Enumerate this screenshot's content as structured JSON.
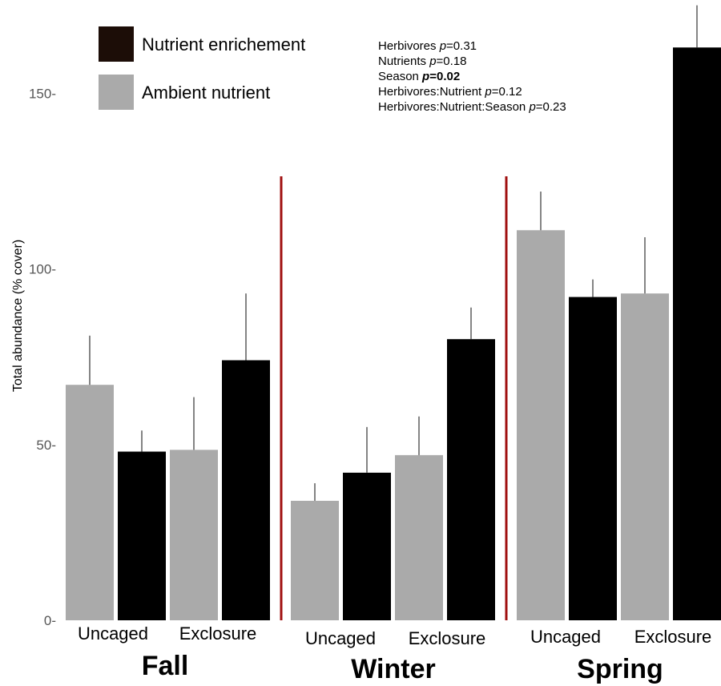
{
  "chart_data": {
    "type": "bar",
    "ylabel": "Total abundance (% cover)",
    "ylim": [
      0,
      168
    ],
    "yticks": [
      0,
      50,
      100,
      150
    ],
    "grid": false,
    "legend": {
      "placement": "top-left",
      "entries": [
        {
          "name": "Nutrient enrichement",
          "color": "#1c0d07"
        },
        {
          "name": "Ambient nutrient",
          "color": "#aaaaaa"
        }
      ]
    },
    "stats_annotation": [
      {
        "name": "Herbivores",
        "p": "=0.31",
        "bold": false
      },
      {
        "name": "Nutrients",
        "p": "=0.18",
        "bold": false
      },
      {
        "name": "Season",
        "p": "=0.02",
        "bold": true
      },
      {
        "name": "Herbivores:Nutrient",
        "p": "=0.12",
        "bold": false
      },
      {
        "name": "Herbivores:Nutrient:Season",
        "p": "=0.23",
        "bold": false
      }
    ],
    "separator_color": "#a01010",
    "groups": [
      {
        "season": "Fall",
        "treatments": [
          "Uncaged",
          "Exclosure"
        ],
        "bars": [
          {
            "treatment": "Uncaged",
            "nutrient": "Ambient nutrient",
            "value": 67,
            "error": 14
          },
          {
            "treatment": "Uncaged",
            "nutrient": "Nutrient enrichement",
            "value": 48,
            "error": 6
          },
          {
            "treatment": "Exclosure",
            "nutrient": "Ambient nutrient",
            "value": 48.5,
            "error": 15
          },
          {
            "treatment": "Exclosure",
            "nutrient": "Nutrient enrichement",
            "value": 74,
            "error": 19
          }
        ]
      },
      {
        "season": "Winter",
        "treatments": [
          "Uncaged",
          "Exclosure"
        ],
        "bars": [
          {
            "treatment": "Uncaged",
            "nutrient": "Ambient nutrient",
            "value": 34,
            "error": 5
          },
          {
            "treatment": "Uncaged",
            "nutrient": "Nutrient enrichement",
            "value": 42,
            "error": 13
          },
          {
            "treatment": "Exclosure",
            "nutrient": "Ambient nutrient",
            "value": 47,
            "error": 11
          },
          {
            "treatment": "Exclosure",
            "nutrient": "Nutrient enrichement",
            "value": 80,
            "error": 9
          }
        ]
      },
      {
        "season": "Spring",
        "treatments": [
          "Uncaged",
          "Exclosure"
        ],
        "bars": [
          {
            "treatment": "Uncaged",
            "nutrient": "Ambient nutrient",
            "value": 111,
            "error": 11
          },
          {
            "treatment": "Uncaged",
            "nutrient": "Nutrient enrichement",
            "value": 92,
            "error": 5
          },
          {
            "treatment": "Exclosure",
            "nutrient": "Ambient nutrient",
            "value": 93,
            "error": 16
          },
          {
            "treatment": "Exclosure",
            "nutrient": "Nutrient enrichement",
            "value": 163,
            "error": 12
          }
        ]
      }
    ]
  }
}
